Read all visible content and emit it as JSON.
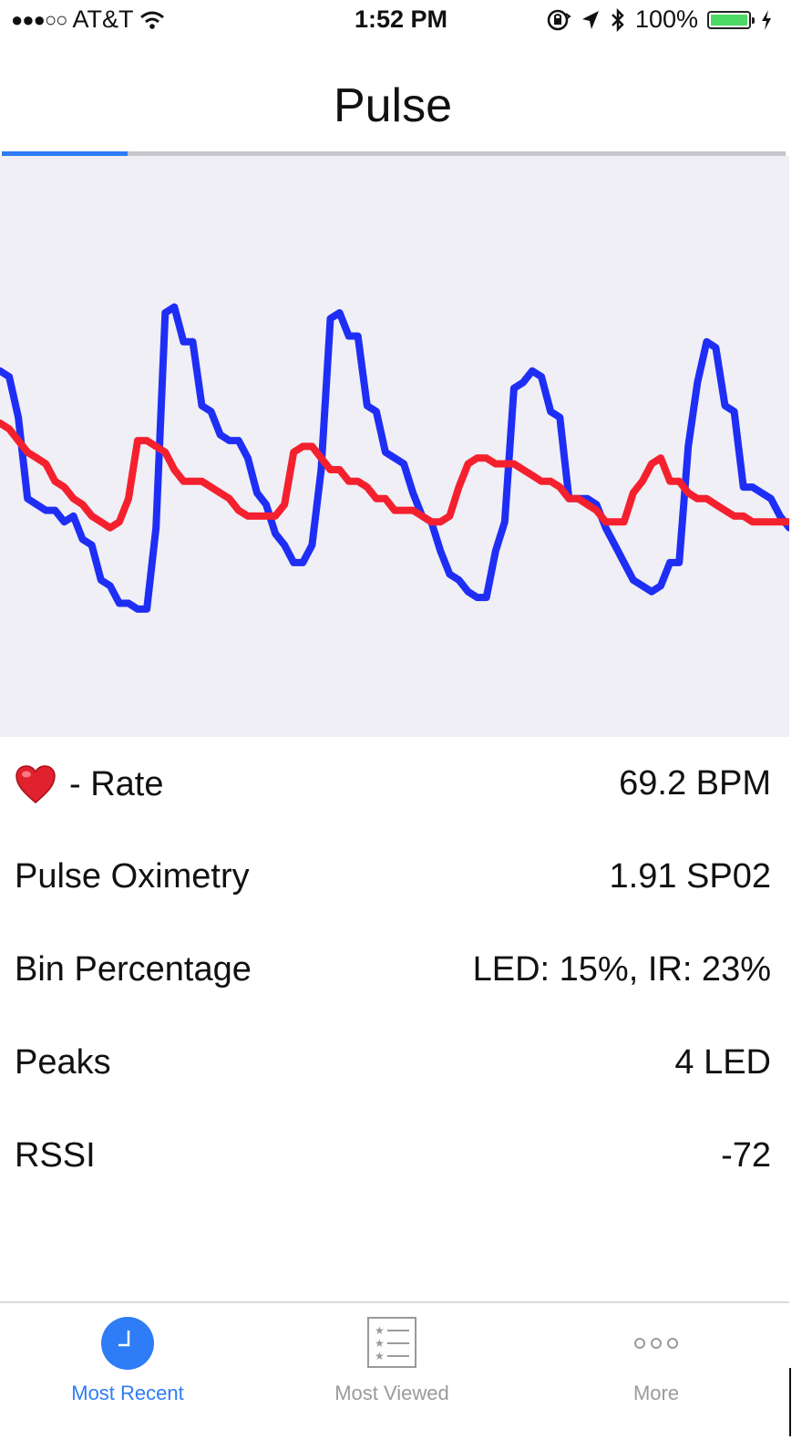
{
  "status_bar": {
    "signal": "●●●○○",
    "carrier": "AT&T",
    "time": "1:52 PM",
    "battery_percent": "100%",
    "battery_level": 1.0,
    "icons": [
      "wifi-icon",
      "orientation-lock-icon",
      "location-arrow-icon",
      "bluetooth-icon",
      "charging-bolt-icon"
    ]
  },
  "header": {
    "title": "Pulse",
    "progress_fraction": 0.16
  },
  "colors": {
    "accent": "#2e7cf6",
    "led_series": "#1f2ef5",
    "ir_series": "#f5202e",
    "chart_background": "#efeff5"
  },
  "chart_data": {
    "type": "line",
    "title": "",
    "xlabel": "",
    "ylabel": "",
    "grid": false,
    "legend": "none",
    "x": [
      0,
      1,
      2,
      3,
      4,
      5,
      6,
      7,
      8,
      9,
      10,
      11,
      12,
      13,
      14,
      15,
      16,
      17,
      18,
      19,
      20,
      21,
      22,
      23,
      24,
      25,
      26,
      27,
      28,
      29,
      30,
      31,
      32,
      33,
      34,
      35,
      36,
      37,
      38,
      39,
      40,
      41,
      42,
      43,
      44,
      45,
      46,
      47,
      48,
      49,
      50,
      51,
      52,
      53,
      54,
      55,
      56,
      57,
      58,
      59,
      60,
      61,
      62,
      63,
      64,
      65,
      66,
      67,
      68,
      69,
      70,
      71,
      72,
      73,
      74,
      75,
      76,
      77,
      78,
      79,
      80,
      81,
      82,
      83,
      84,
      85,
      86
    ],
    "ylim": [
      0,
      100
    ],
    "series": [
      {
        "color": "#1f2ef5",
        "values": [
          63,
          62,
          55,
          41,
          40,
          39,
          39,
          37,
          38,
          34,
          33,
          27,
          26,
          23,
          23,
          22,
          22,
          36,
          73,
          74,
          68,
          68,
          57,
          56,
          52,
          51,
          51,
          48,
          42,
          40,
          35,
          33,
          30,
          30,
          33,
          46,
          72,
          73,
          69,
          69,
          57,
          56,
          49,
          48,
          47,
          42,
          38,
          37,
          32,
          28,
          27,
          25,
          24,
          24,
          32,
          37,
          60,
          61,
          63,
          62,
          56,
          55,
          41,
          41,
          41,
          40,
          36,
          33,
          30,
          27,
          26,
          25,
          26,
          30,
          30,
          50,
          61,
          68,
          67,
          57,
          56,
          43,
          43,
          42,
          41,
          38,
          36
        ]
      },
      {
        "color": "#f5202e",
        "values": [
          54,
          53,
          51,
          49,
          48,
          47,
          44,
          43,
          41,
          40,
          38,
          37,
          36,
          37,
          41,
          51,
          51,
          50,
          49,
          46,
          44,
          44,
          44,
          43,
          42,
          41,
          39,
          38,
          38,
          38,
          38,
          40,
          49,
          50,
          50,
          48,
          46,
          46,
          44,
          44,
          43,
          41,
          41,
          39,
          39,
          39,
          38,
          37,
          37,
          38,
          43,
          47,
          48,
          48,
          47,
          47,
          47,
          46,
          45,
          44,
          44,
          43,
          41,
          41,
          40,
          39,
          37,
          37,
          37,
          42,
          44,
          47,
          48,
          44,
          44,
          42,
          41,
          41,
          40,
          39,
          38,
          38,
          37,
          37,
          37,
          37,
          37
        ]
      }
    ]
  },
  "readings": [
    {
      "label": "- Rate",
      "value": "69.2 BPM",
      "icon": "heart-icon"
    },
    {
      "label": "Pulse Oximetry",
      "value": "1.91 SP02"
    },
    {
      "label": "Bin Percentage",
      "value": "LED: 15%, IR: 23%"
    },
    {
      "label": "Peaks",
      "value": "4 LED"
    },
    {
      "label": "RSSI",
      "value": "-72"
    }
  ],
  "tab_bar": {
    "tabs": [
      {
        "label": "Most Recent",
        "icon": "clock-icon",
        "active": true
      },
      {
        "label": "Most Viewed",
        "icon": "ranked-list-icon",
        "active": false
      },
      {
        "label": "More",
        "icon": "more-dots-icon",
        "active": false
      }
    ]
  }
}
